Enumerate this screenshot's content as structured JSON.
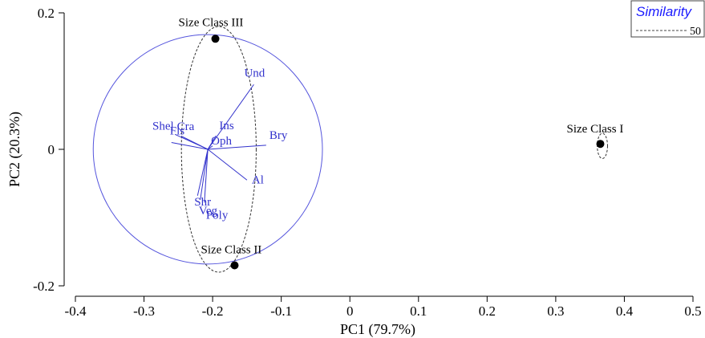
{
  "chart_data": {
    "type": "scatter",
    "title": "",
    "xlabel": "PC1 (79.7%)",
    "ylabel": "PC2 (20.3%)",
    "xlim": [
      -0.4,
      0.5
    ],
    "ylim": [
      -0.2,
      0.2
    ],
    "x_ticks": [
      -0.4,
      -0.3,
      -0.2,
      -0.1,
      0,
      0.1,
      0.2,
      0.3,
      0.4,
      0.5
    ],
    "x_tick_labels": [
      "-0.4",
      "-0.3",
      "-0.2",
      "-0.1",
      "0",
      "0.1",
      "0.2",
      "0.3",
      "0.4",
      "0.5"
    ],
    "y_ticks": [
      -0.2,
      0,
      0.2
    ],
    "y_tick_labels": [
      "-0.2",
      "0",
      "0.2"
    ],
    "grid": false,
    "points": [
      {
        "label": "Size Class I",
        "x": 0.365,
        "y": 0.008
      },
      {
        "label": "Size Class II",
        "x": -0.168,
        "y": -0.17
      },
      {
        "label": "Size Class III",
        "x": -0.196,
        "y": 0.162
      }
    ],
    "vector_origin": [
      -0.207,
      0.0
    ],
    "vectors": [
      {
        "label": "Shel",
        "x": -0.255,
        "y": 0.022
      },
      {
        "label": "Cra",
        "x": -0.245,
        "y": 0.019
      },
      {
        "label": "Fis",
        "x": -0.26,
        "y": 0.01
      },
      {
        "label": "Ins",
        "x": -0.195,
        "y": 0.02
      },
      {
        "label": "Und",
        "x": -0.14,
        "y": 0.095
      },
      {
        "label": "Oph",
        "x": -0.2,
        "y": 0.005
      },
      {
        "label": "Bry",
        "x": -0.122,
        "y": 0.006
      },
      {
        "label": "Al",
        "x": -0.15,
        "y": -0.045
      },
      {
        "label": "Shr",
        "x": -0.222,
        "y": -0.068
      },
      {
        "label": "Veg",
        "x": -0.218,
        "y": -0.074
      },
      {
        "label": "Poly",
        "x": -0.212,
        "y": -0.078
      }
    ],
    "correlation_circle": {
      "cx": -0.207,
      "cy": 0.0,
      "r": 0.167
    },
    "similarity_ellipses": [
      {
        "cx": 0.368,
        "cy": 0.005,
        "rx": 0.0075,
        "ry": 0.0185
      },
      {
        "cx": -0.191,
        "cy": 0.0,
        "rx": 0.0545,
        "ry": 0.18
      }
    ],
    "legend": {
      "title": "Similarity",
      "entries": [
        {
          "name": "50"
        }
      ],
      "position": "top-right"
    },
    "colors": {
      "axis": "#000000",
      "points": "#000000",
      "vectors": "#3333cc",
      "circle": "#5555dd",
      "ellipse": "#333333",
      "legend_title": "#1a1aff"
    }
  }
}
